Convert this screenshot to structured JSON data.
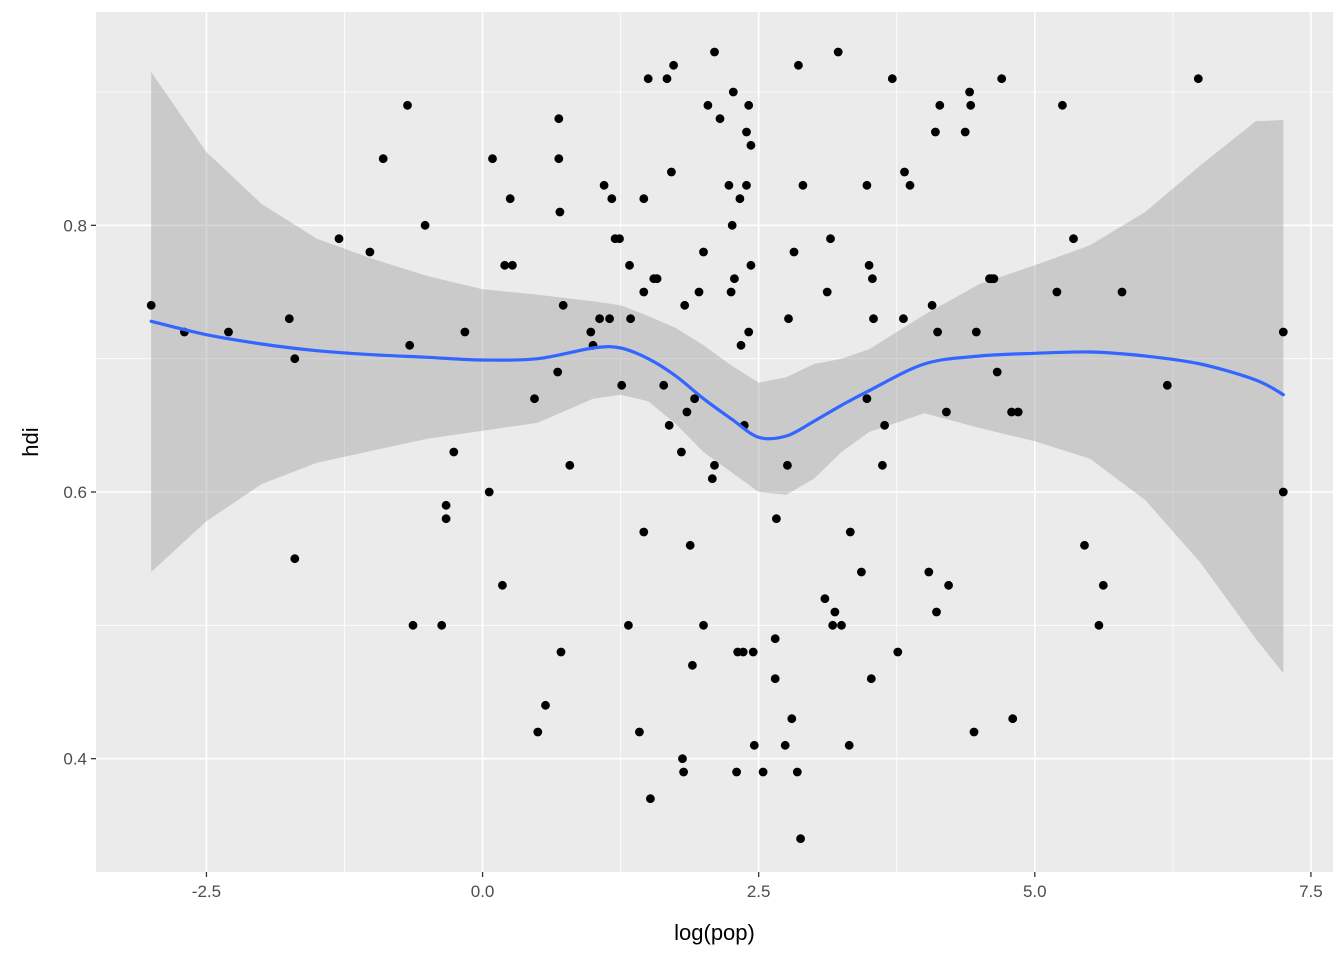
{
  "chart_data": {
    "type": "scatter",
    "title": "",
    "xlabel": "log(pop)",
    "ylabel": "hdi",
    "xlim": [
      -3.5,
      7.7
    ],
    "ylim": [
      0.315,
      0.96
    ],
    "x_ticks": [
      -2.5,
      0.0,
      2.5,
      5.0,
      7.5
    ],
    "x_tick_labels": [
      "-2.5",
      "0.0",
      "2.5",
      "5.0",
      "7.5"
    ],
    "y_ticks": [
      0.4,
      0.6,
      0.8
    ],
    "y_tick_labels": [
      "0.4",
      "0.6",
      "0.8"
    ],
    "grid": true,
    "colors": {
      "panel": "#EBEBEB",
      "grid_major": "#FFFFFF",
      "points": "#000000",
      "smooth_line": "#3366FF",
      "ribbon": "#999999"
    },
    "points": [
      [
        -3.0,
        0.74
      ],
      [
        -2.7,
        0.72
      ],
      [
        -2.3,
        0.72
      ],
      [
        -1.75,
        0.73
      ],
      [
        -1.7,
        0.7
      ],
      [
        -1.7,
        0.55
      ],
      [
        -1.3,
        0.79
      ],
      [
        -1.02,
        0.78
      ],
      [
        -0.9,
        0.85
      ],
      [
        -0.68,
        0.89
      ],
      [
        -0.66,
        0.71
      ],
      [
        -0.63,
        0.5
      ],
      [
        -0.52,
        0.8
      ],
      [
        -0.37,
        0.5
      ],
      [
        -0.33,
        0.59
      ],
      [
        -0.33,
        0.58
      ],
      [
        -0.26,
        0.63
      ],
      [
        -0.16,
        0.72
      ],
      [
        0.06,
        0.6
      ],
      [
        0.09,
        0.85
      ],
      [
        0.18,
        0.53
      ],
      [
        0.2,
        0.77
      ],
      [
        0.25,
        0.82
      ],
      [
        0.27,
        0.77
      ],
      [
        0.47,
        0.67
      ],
      [
        0.5,
        0.42
      ],
      [
        0.57,
        0.44
      ],
      [
        0.68,
        0.69
      ],
      [
        0.69,
        0.88
      ],
      [
        0.69,
        0.85
      ],
      [
        0.7,
        0.81
      ],
      [
        0.71,
        0.48
      ],
      [
        0.73,
        0.74
      ],
      [
        0.79,
        0.62
      ],
      [
        0.98,
        0.72
      ],
      [
        1.0,
        0.71
      ],
      [
        1.06,
        0.73
      ],
      [
        1.1,
        0.83
      ],
      [
        1.15,
        0.73
      ],
      [
        1.17,
        0.82
      ],
      [
        1.2,
        0.79
      ],
      [
        1.24,
        0.79
      ],
      [
        1.26,
        0.68
      ],
      [
        1.32,
        0.5
      ],
      [
        1.33,
        0.77
      ],
      [
        1.34,
        0.73
      ],
      [
        1.42,
        0.42
      ],
      [
        1.46,
        0.82
      ],
      [
        1.46,
        0.75
      ],
      [
        1.46,
        0.57
      ],
      [
        1.5,
        0.91
      ],
      [
        1.52,
        0.37
      ],
      [
        1.55,
        0.76
      ],
      [
        1.58,
        0.76
      ],
      [
        1.64,
        0.68
      ],
      [
        1.67,
        0.91
      ],
      [
        1.69,
        0.65
      ],
      [
        1.71,
        0.84
      ],
      [
        1.73,
        0.92
      ],
      [
        1.8,
        0.63
      ],
      [
        1.81,
        0.4
      ],
      [
        1.82,
        0.39
      ],
      [
        1.83,
        0.74
      ],
      [
        1.85,
        0.66
      ],
      [
        1.88,
        0.56
      ],
      [
        1.9,
        0.47
      ],
      [
        1.92,
        0.67
      ],
      [
        1.96,
        0.75
      ],
      [
        2.0,
        0.78
      ],
      [
        2.0,
        0.5
      ],
      [
        2.04,
        0.89
      ],
      [
        2.08,
        0.61
      ],
      [
        2.1,
        0.62
      ],
      [
        2.1,
        0.93
      ],
      [
        2.15,
        0.88
      ],
      [
        2.23,
        0.83
      ],
      [
        2.25,
        0.75
      ],
      [
        2.26,
        0.8
      ],
      [
        2.27,
        0.9
      ],
      [
        2.28,
        0.76
      ],
      [
        2.3,
        0.39
      ],
      [
        2.31,
        0.48
      ],
      [
        2.33,
        0.82
      ],
      [
        2.34,
        0.71
      ],
      [
        2.36,
        0.48
      ],
      [
        2.37,
        0.65
      ],
      [
        2.39,
        0.83
      ],
      [
        2.39,
        0.87
      ],
      [
        2.41,
        0.72
      ],
      [
        2.41,
        0.89
      ],
      [
        2.43,
        0.86
      ],
      [
        2.43,
        0.77
      ],
      [
        2.45,
        0.48
      ],
      [
        2.46,
        0.41
      ],
      [
        2.54,
        0.39
      ],
      [
        2.65,
        0.49
      ],
      [
        2.65,
        0.46
      ],
      [
        2.66,
        0.58
      ],
      [
        2.74,
        0.41
      ],
      [
        2.76,
        0.62
      ],
      [
        2.77,
        0.73
      ],
      [
        2.8,
        0.43
      ],
      [
        2.82,
        0.78
      ],
      [
        2.85,
        0.39
      ],
      [
        2.86,
        0.92
      ],
      [
        2.88,
        0.34
      ],
      [
        2.9,
        0.83
      ],
      [
        3.1,
        0.52
      ],
      [
        3.12,
        0.75
      ],
      [
        3.15,
        0.79
      ],
      [
        3.17,
        0.5
      ],
      [
        3.19,
        0.51
      ],
      [
        3.22,
        0.93
      ],
      [
        3.25,
        0.5
      ],
      [
        3.32,
        0.41
      ],
      [
        3.33,
        0.57
      ],
      [
        3.43,
        0.54
      ],
      [
        3.48,
        0.67
      ],
      [
        3.48,
        0.83
      ],
      [
        3.5,
        0.77
      ],
      [
        3.52,
        0.46
      ],
      [
        3.53,
        0.76
      ],
      [
        3.54,
        0.73
      ],
      [
        3.62,
        0.62
      ],
      [
        3.64,
        0.65
      ],
      [
        3.71,
        0.91
      ],
      [
        3.76,
        0.48
      ],
      [
        3.81,
        0.73
      ],
      [
        3.82,
        0.84
      ],
      [
        3.87,
        0.83
      ],
      [
        4.04,
        0.54
      ],
      [
        4.07,
        0.74
      ],
      [
        4.1,
        0.87
      ],
      [
        4.11,
        0.51
      ],
      [
        4.12,
        0.72
      ],
      [
        4.14,
        0.89
      ],
      [
        4.2,
        0.66
      ],
      [
        4.22,
        0.53
      ],
      [
        4.37,
        0.87
      ],
      [
        4.41,
        0.9
      ],
      [
        4.42,
        0.89
      ],
      [
        4.45,
        0.42
      ],
      [
        4.47,
        0.72
      ],
      [
        4.59,
        0.76
      ],
      [
        4.61,
        0.76
      ],
      [
        4.63,
        0.76
      ],
      [
        4.66,
        0.69
      ],
      [
        4.7,
        0.91
      ],
      [
        4.79,
        0.66
      ],
      [
        4.8,
        0.43
      ],
      [
        4.85,
        0.66
      ],
      [
        5.2,
        0.75
      ],
      [
        5.25,
        0.89
      ],
      [
        5.35,
        0.79
      ],
      [
        5.45,
        0.56
      ],
      [
        5.58,
        0.5
      ],
      [
        5.62,
        0.53
      ],
      [
        5.79,
        0.75
      ],
      [
        6.2,
        0.68
      ],
      [
        6.48,
        0.91
      ],
      [
        7.25,
        0.6
      ],
      [
        7.25,
        0.72
      ]
    ],
    "smooth": {
      "x": [
        -3.0,
        -2.5,
        -2.0,
        -1.5,
        -1.0,
        -0.5,
        0.0,
        0.5,
        1.0,
        1.25,
        1.5,
        1.75,
        2.0,
        2.25,
        2.5,
        2.75,
        3.0,
        3.25,
        3.5,
        4.0,
        4.5,
        5.0,
        5.5,
        6.0,
        6.5,
        7.0,
        7.25
      ],
      "y": [
        0.728,
        0.718,
        0.711,
        0.706,
        0.703,
        0.701,
        0.699,
        0.7,
        0.708,
        0.708,
        0.7,
        0.687,
        0.67,
        0.655,
        0.641,
        0.642,
        0.653,
        0.665,
        0.676,
        0.696,
        0.702,
        0.704,
        0.705,
        0.702,
        0.696,
        0.684,
        0.673
      ],
      "upper": [
        0.915,
        0.855,
        0.816,
        0.79,
        0.775,
        0.762,
        0.752,
        0.748,
        0.743,
        0.74,
        0.732,
        0.723,
        0.71,
        0.695,
        0.682,
        0.686,
        0.696,
        0.7,
        0.707,
        0.733,
        0.756,
        0.77,
        0.785,
        0.81,
        0.845,
        0.878,
        0.879
      ],
      "lower": [
        0.54,
        0.578,
        0.606,
        0.622,
        0.631,
        0.64,
        0.646,
        0.652,
        0.67,
        0.673,
        0.668,
        0.651,
        0.63,
        0.615,
        0.6,
        0.598,
        0.61,
        0.63,
        0.645,
        0.659,
        0.648,
        0.638,
        0.625,
        0.594,
        0.547,
        0.49,
        0.464
      ]
    }
  }
}
